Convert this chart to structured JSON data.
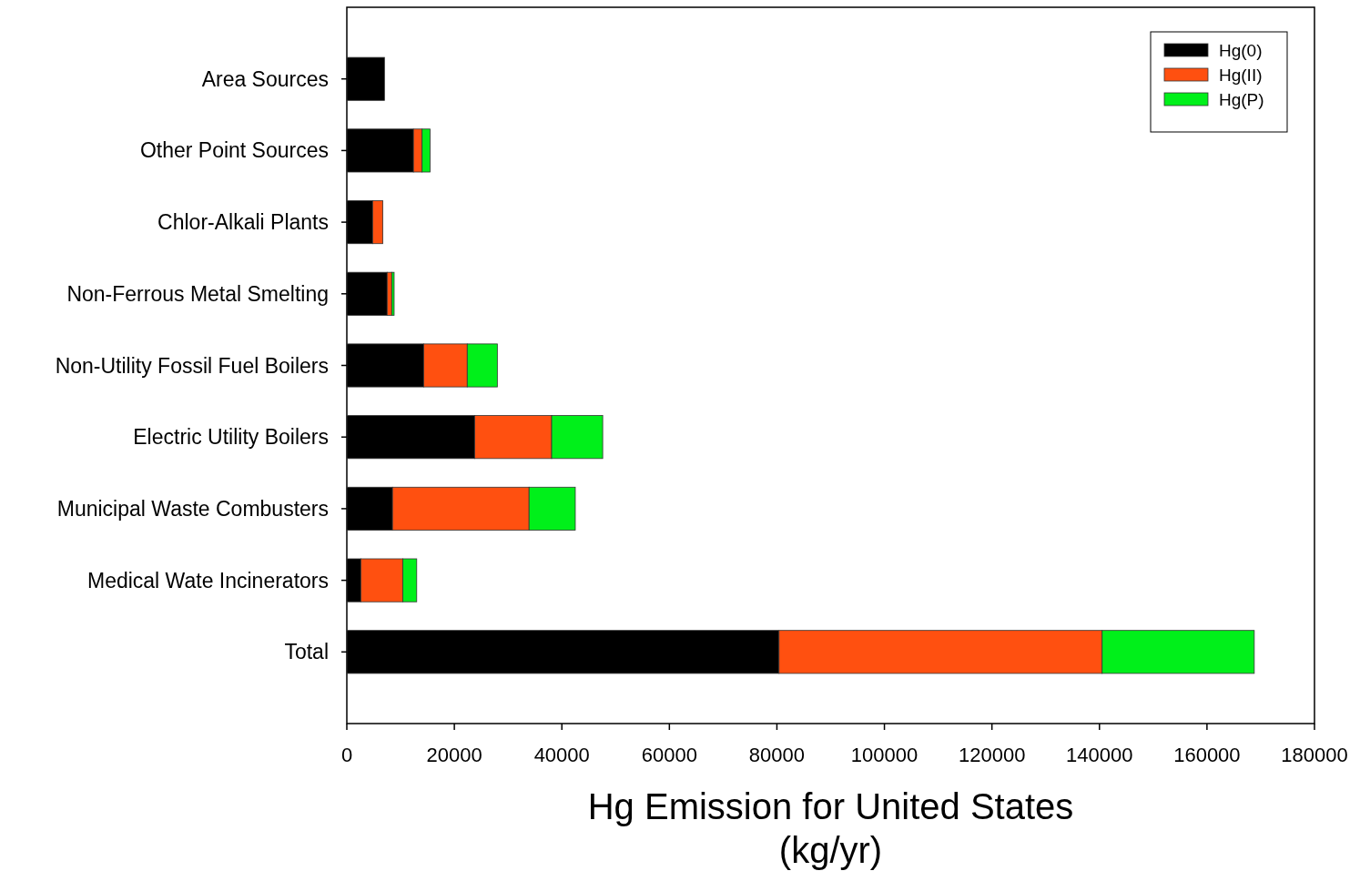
{
  "chart_data": {
    "type": "bar",
    "orientation": "horizontal",
    "stacked": true,
    "xlabel": "Hg Emission for United States\n(kg/yr)",
    "categories": [
      "Area Sources",
      "Other Point Sources",
      "Chlor-Alkali Plants",
      "Non-Ferrous Metal Smelting",
      "Non-Utility Fossil Fuel Boilers",
      "Electric Utility Boilers",
      "Municipal Waste Combusters",
      "Medical Wate Incinerators",
      "Total"
    ],
    "series": [
      {
        "name": "Hg(0)",
        "color": "#000000",
        "values": [
          7000,
          12400,
          4800,
          7500,
          14300,
          23800,
          8500,
          2600,
          80400
        ]
      },
      {
        "name": "Hg(II)",
        "color": "#ff5010",
        "values": [
          0,
          1600,
          1900,
          850,
          8100,
          14300,
          25400,
          7800,
          60100
        ]
      },
      {
        "name": "Hg(P)",
        "color": "#00f01a",
        "values": [
          0,
          1500,
          0,
          450,
          5600,
          9500,
          8600,
          2600,
          28300
        ]
      }
    ],
    "xlim": [
      0,
      180000
    ],
    "xticks": [
      0,
      20000,
      40000,
      60000,
      80000,
      100000,
      120000,
      140000,
      160000,
      180000
    ],
    "legend": "top right",
    "grid": false
  }
}
